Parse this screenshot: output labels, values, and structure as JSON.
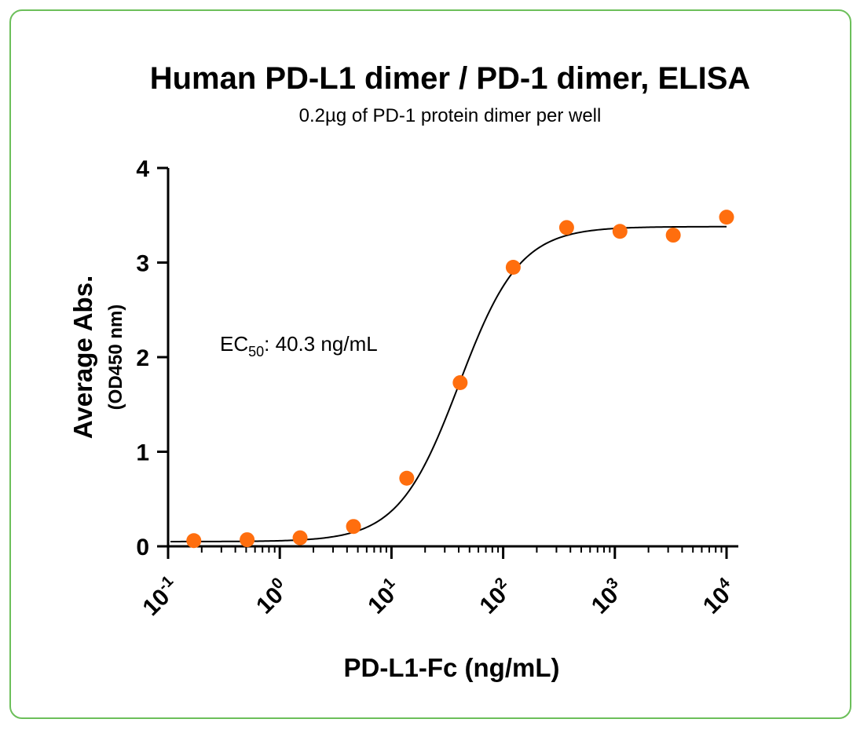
{
  "frame_color": "#6cbf5a",
  "chart_data": {
    "type": "scatter",
    "title": "Human PD-L1 dimer / PD-1 dimer, ELISA",
    "subtitle": "0.2µg of PD-1 protein dimer per well",
    "xlabel": "PD-L1-Fc (ng/mL)",
    "ylabel": "Average Abs.",
    "ylabel_sub": "(OD450 nm)",
    "x_scale": "log10",
    "xlim": [
      0.1,
      10000
    ],
    "ylim": [
      0,
      4
    ],
    "x_tick_exponents": [
      "-1",
      "0",
      "1",
      "2",
      "3",
      "4"
    ],
    "x_tick_base": "10",
    "y_ticks": [
      "0",
      "1",
      "2",
      "3",
      "4"
    ],
    "grid": false,
    "annotation": {
      "prefix": "EC",
      "subscript": "50",
      "suffix": ": 40.3 ng/mL"
    },
    "series": [
      {
        "color": "#ff6e0e",
        "x": [
          0.17,
          0.51,
          1.52,
          4.57,
          13.7,
          41.2,
          123,
          370,
          1111,
          3333,
          10000
        ],
        "y": [
          0.06,
          0.07,
          0.09,
          0.21,
          0.72,
          1.73,
          2.95,
          3.37,
          3.33,
          3.29,
          3.48
        ]
      }
    ],
    "fit": {
      "color": "#000000",
      "model": "4PL",
      "bottom": 0.05,
      "top": 3.38,
      "ec50": 40.3,
      "hill": 1.6
    }
  }
}
